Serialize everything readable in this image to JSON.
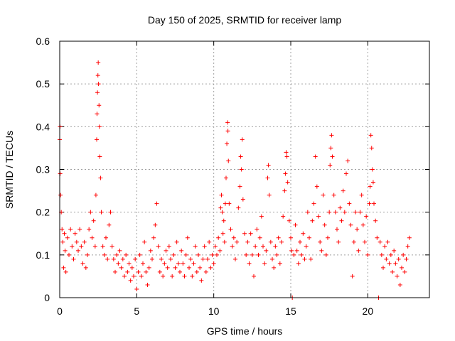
{
  "chart_data": {
    "type": "scatter",
    "title": "Day 150 of 2025, SRMTID for receiver lamp",
    "xlabel": "GPS time / hours",
    "ylabel": "SRMTID / TECUs",
    "xlim": [
      0,
      24
    ],
    "ylim": [
      0,
      0.6
    ],
    "xticks": [
      0,
      5,
      10,
      15,
      20
    ],
    "xtick_labels": [
      "0",
      "5",
      "10",
      "15",
      "20"
    ],
    "yticks": [
      0,
      0.1,
      0.2,
      0.3,
      0.4,
      0.5,
      0.6
    ],
    "ytick_labels": [
      "0",
      "0.1",
      "0.2",
      "0.3",
      "0.4",
      "0.5",
      "0.6"
    ],
    "grid": true,
    "marker": "plus",
    "color": "#ff0000",
    "series": [
      {
        "name": "SRMTID",
        "points": [
          [
            0.0,
            0.37
          ],
          [
            0.02,
            0.4
          ],
          [
            0.03,
            0.29
          ],
          [
            0.05,
            0.24
          ],
          [
            0.1,
            0.2
          ],
          [
            0.15,
            0.16
          ],
          [
            0.2,
            0.13
          ],
          [
            0.25,
            0.07
          ],
          [
            0.3,
            0.15
          ],
          [
            0.35,
            0.11
          ],
          [
            0.4,
            0.06
          ],
          [
            0.5,
            0.14
          ],
          [
            0.6,
            0.1
          ],
          [
            0.7,
            0.16
          ],
          [
            0.8,
            0.12
          ],
          [
            0.9,
            0.09
          ],
          [
            1.0,
            0.15
          ],
          [
            1.1,
            0.13
          ],
          [
            1.2,
            0.11
          ],
          [
            1.3,
            0.16
          ],
          [
            1.4,
            0.12
          ],
          [
            1.5,
            0.08
          ],
          [
            1.6,
            0.13
          ],
          [
            1.7,
            0.07
          ],
          [
            1.8,
            0.1
          ],
          [
            1.9,
            0.16
          ],
          [
            2.0,
            0.2
          ],
          [
            2.1,
            0.14
          ],
          [
            2.2,
            0.18
          ],
          [
            2.3,
            0.12
          ],
          [
            2.35,
            0.24
          ],
          [
            2.4,
            0.37
          ],
          [
            2.42,
            0.43
          ],
          [
            2.45,
            0.48
          ],
          [
            2.48,
            0.52
          ],
          [
            2.5,
            0.55
          ],
          [
            2.52,
            0.5
          ],
          [
            2.55,
            0.45
          ],
          [
            2.58,
            0.4
          ],
          [
            2.6,
            0.33
          ],
          [
            2.65,
            0.28
          ],
          [
            2.7,
            0.2
          ],
          [
            2.8,
            0.12
          ],
          [
            2.9,
            0.1
          ],
          [
            3.0,
            0.14
          ],
          [
            3.1,
            0.09
          ],
          [
            3.2,
            0.17
          ],
          [
            3.3,
            0.2
          ],
          [
            3.4,
            0.12
          ],
          [
            3.5,
            0.09
          ],
          [
            3.6,
            0.06
          ],
          [
            3.7,
            0.1
          ],
          [
            3.8,
            0.08
          ],
          [
            3.9,
            0.11
          ],
          [
            4.0,
            0.07
          ],
          [
            4.1,
            0.09
          ],
          [
            4.2,
            0.05
          ],
          [
            4.3,
            0.1
          ],
          [
            4.4,
            0.06
          ],
          [
            4.5,
            0.08
          ],
          [
            4.6,
            0.04
          ],
          [
            4.7,
            0.07
          ],
          [
            4.8,
            0.05
          ],
          [
            4.9,
            0.09
          ],
          [
            5.0,
            0.02
          ],
          [
            5.1,
            0.06
          ],
          [
            5.2,
            0.1
          ],
          [
            5.3,
            0.05
          ],
          [
            5.4,
            0.08
          ],
          [
            5.5,
            0.13
          ],
          [
            5.6,
            0.06
          ],
          [
            5.7,
            0.03
          ],
          [
            5.8,
            0.07
          ],
          [
            5.9,
            0.11
          ],
          [
            6.0,
            0.09
          ],
          [
            6.1,
            0.14
          ],
          [
            6.2,
            0.17
          ],
          [
            6.3,
            0.22
          ],
          [
            6.4,
            0.12
          ],
          [
            6.5,
            0.06
          ],
          [
            6.6,
            0.09
          ],
          [
            6.7,
            0.05
          ],
          [
            6.8,
            0.08
          ],
          [
            6.9,
            0.11
          ],
          [
            7.0,
            0.07
          ],
          [
            7.1,
            0.12
          ],
          [
            7.2,
            0.09
          ],
          [
            7.3,
            0.05
          ],
          [
            7.4,
            0.1
          ],
          [
            7.5,
            0.07
          ],
          [
            7.6,
            0.13
          ],
          [
            7.7,
            0.08
          ],
          [
            7.8,
            0.06
          ],
          [
            7.9,
            0.11
          ],
          [
            8.0,
            0.08
          ],
          [
            8.1,
            0.05
          ],
          [
            8.2,
            0.1
          ],
          [
            8.3,
            0.14
          ],
          [
            8.4,
            0.07
          ],
          [
            8.5,
            0.09
          ],
          [
            8.6,
            0.05
          ],
          [
            8.7,
            0.08
          ],
          [
            8.8,
            0.12
          ],
          [
            8.9,
            0.06
          ],
          [
            9.0,
            0.1
          ],
          [
            9.1,
            0.07
          ],
          [
            9.2,
            0.04
          ],
          [
            9.3,
            0.09
          ],
          [
            9.4,
            0.12
          ],
          [
            9.5,
            0.06
          ],
          [
            9.6,
            0.09
          ],
          [
            9.7,
            0.13
          ],
          [
            9.8,
            0.07
          ],
          [
            9.9,
            0.1
          ],
          [
            10.0,
            0.08
          ],
          [
            10.1,
            0.12
          ],
          [
            10.2,
            0.1
          ],
          [
            10.3,
            0.14
          ],
          [
            10.4,
            0.11
          ],
          [
            10.45,
            0.21
          ],
          [
            10.5,
            0.24
          ],
          [
            10.55,
            0.2
          ],
          [
            10.6,
            0.15
          ],
          [
            10.65,
            0.18
          ],
          [
            10.7,
            0.13
          ],
          [
            10.75,
            0.22
          ],
          [
            10.8,
            0.28
          ],
          [
            10.85,
            0.36
          ],
          [
            10.9,
            0.41
          ],
          [
            10.92,
            0.39
          ],
          [
            10.95,
            0.32
          ],
          [
            11.0,
            0.22
          ],
          [
            11.1,
            0.16
          ],
          [
            11.2,
            0.12
          ],
          [
            11.3,
            0.14
          ],
          [
            11.4,
            0.09
          ],
          [
            11.5,
            0.13
          ],
          [
            11.6,
            0.21
          ],
          [
            11.7,
            0.26
          ],
          [
            11.75,
            0.33
          ],
          [
            11.8,
            0.3
          ],
          [
            11.85,
            0.37
          ],
          [
            11.9,
            0.23
          ],
          [
            12.0,
            0.15
          ],
          [
            12.1,
            0.1
          ],
          [
            12.2,
            0.13
          ],
          [
            12.3,
            0.08
          ],
          [
            12.4,
            0.15
          ],
          [
            12.5,
            0.1
          ],
          [
            12.6,
            0.05
          ],
          [
            12.7,
            0.12
          ],
          [
            12.8,
            0.16
          ],
          [
            12.9,
            0.1
          ],
          [
            13.0,
            0.14
          ],
          [
            13.1,
            0.19
          ],
          [
            13.2,
            0.12
          ],
          [
            13.3,
            0.08
          ],
          [
            13.4,
            0.11
          ],
          [
            13.5,
            0.28
          ],
          [
            13.55,
            0.31
          ],
          [
            13.6,
            0.24
          ],
          [
            13.7,
            0.13
          ],
          [
            13.8,
            0.09
          ],
          [
            13.9,
            0.07
          ],
          [
            14.0,
            0.12
          ],
          [
            14.1,
            0.1
          ],
          [
            14.2,
            0.14
          ],
          [
            14.3,
            0.08
          ],
          [
            14.4,
            0.13
          ],
          [
            14.5,
            0.19
          ],
          [
            14.6,
            0.25
          ],
          [
            14.65,
            0.29
          ],
          [
            14.7,
            0.34
          ],
          [
            14.75,
            0.33
          ],
          [
            14.8,
            0.27
          ],
          [
            14.9,
            0.18
          ],
          [
            15.0,
            0.14
          ],
          [
            15.05,
            0.11
          ],
          [
            15.1,
            0.0
          ],
          [
            15.2,
            0.1
          ],
          [
            15.3,
            0.17
          ],
          [
            15.4,
            0.11
          ],
          [
            15.5,
            0.08
          ],
          [
            15.6,
            0.13
          ],
          [
            15.7,
            0.1
          ],
          [
            15.8,
            0.15
          ],
          [
            15.9,
            0.09
          ],
          [
            16.0,
            0.12
          ],
          [
            16.1,
            0.2
          ],
          [
            16.2,
            0.14
          ],
          [
            16.3,
            0.09
          ],
          [
            16.4,
            0.18
          ],
          [
            16.5,
            0.22
          ],
          [
            16.6,
            0.33
          ],
          [
            16.7,
            0.26
          ],
          [
            16.8,
            0.19
          ],
          [
            16.9,
            0.13
          ],
          [
            17.0,
            0.11
          ],
          [
            17.1,
            0.24
          ],
          [
            17.2,
            0.17
          ],
          [
            17.3,
            0.1
          ],
          [
            17.4,
            0.14
          ],
          [
            17.5,
            0.2
          ],
          [
            17.55,
            0.31
          ],
          [
            17.6,
            0.35
          ],
          [
            17.65,
            0.38
          ],
          [
            17.7,
            0.33
          ],
          [
            17.8,
            0.24
          ],
          [
            17.9,
            0.2
          ],
          [
            18.0,
            0.16
          ],
          [
            18.1,
            0.13
          ],
          [
            18.2,
            0.21
          ],
          [
            18.3,
            0.18
          ],
          [
            18.4,
            0.25
          ],
          [
            18.5,
            0.2
          ],
          [
            18.6,
            0.29
          ],
          [
            18.7,
            0.32
          ],
          [
            18.8,
            0.22
          ],
          [
            18.9,
            0.17
          ],
          [
            19.0,
            0.05
          ],
          [
            19.1,
            0.13
          ],
          [
            19.2,
            0.2
          ],
          [
            19.3,
            0.16
          ],
          [
            19.4,
            0.11
          ],
          [
            19.5,
            0.2
          ],
          [
            19.6,
            0.24
          ],
          [
            19.7,
            0.17
          ],
          [
            19.8,
            0.13
          ],
          [
            19.9,
            0.19
          ],
          [
            20.0,
            0.1
          ],
          [
            20.1,
            0.22
          ],
          [
            20.15,
            0.26
          ],
          [
            20.2,
            0.38
          ],
          [
            20.25,
            0.35
          ],
          [
            20.3,
            0.3
          ],
          [
            20.35,
            0.27
          ],
          [
            20.4,
            0.22
          ],
          [
            20.5,
            0.18
          ],
          [
            20.6,
            0.14
          ],
          [
            20.7,
            0.0
          ],
          [
            20.8,
            0.13
          ],
          [
            20.9,
            0.1
          ],
          [
            21.0,
            0.07
          ],
          [
            21.1,
            0.12
          ],
          [
            21.2,
            0.09
          ],
          [
            21.3,
            0.13
          ],
          [
            21.4,
            0.08
          ],
          [
            21.5,
            0.1
          ],
          [
            21.6,
            0.06
          ],
          [
            21.7,
            0.11
          ],
          [
            21.8,
            0.08
          ],
          [
            21.9,
            0.05
          ],
          [
            22.0,
            0.09
          ],
          [
            22.1,
            0.03
          ],
          [
            22.2,
            0.07
          ],
          [
            22.3,
            0.1
          ],
          [
            22.4,
            0.06
          ],
          [
            22.5,
            0.09
          ],
          [
            22.6,
            0.12
          ],
          [
            22.7,
            0.14
          ]
        ]
      }
    ]
  }
}
